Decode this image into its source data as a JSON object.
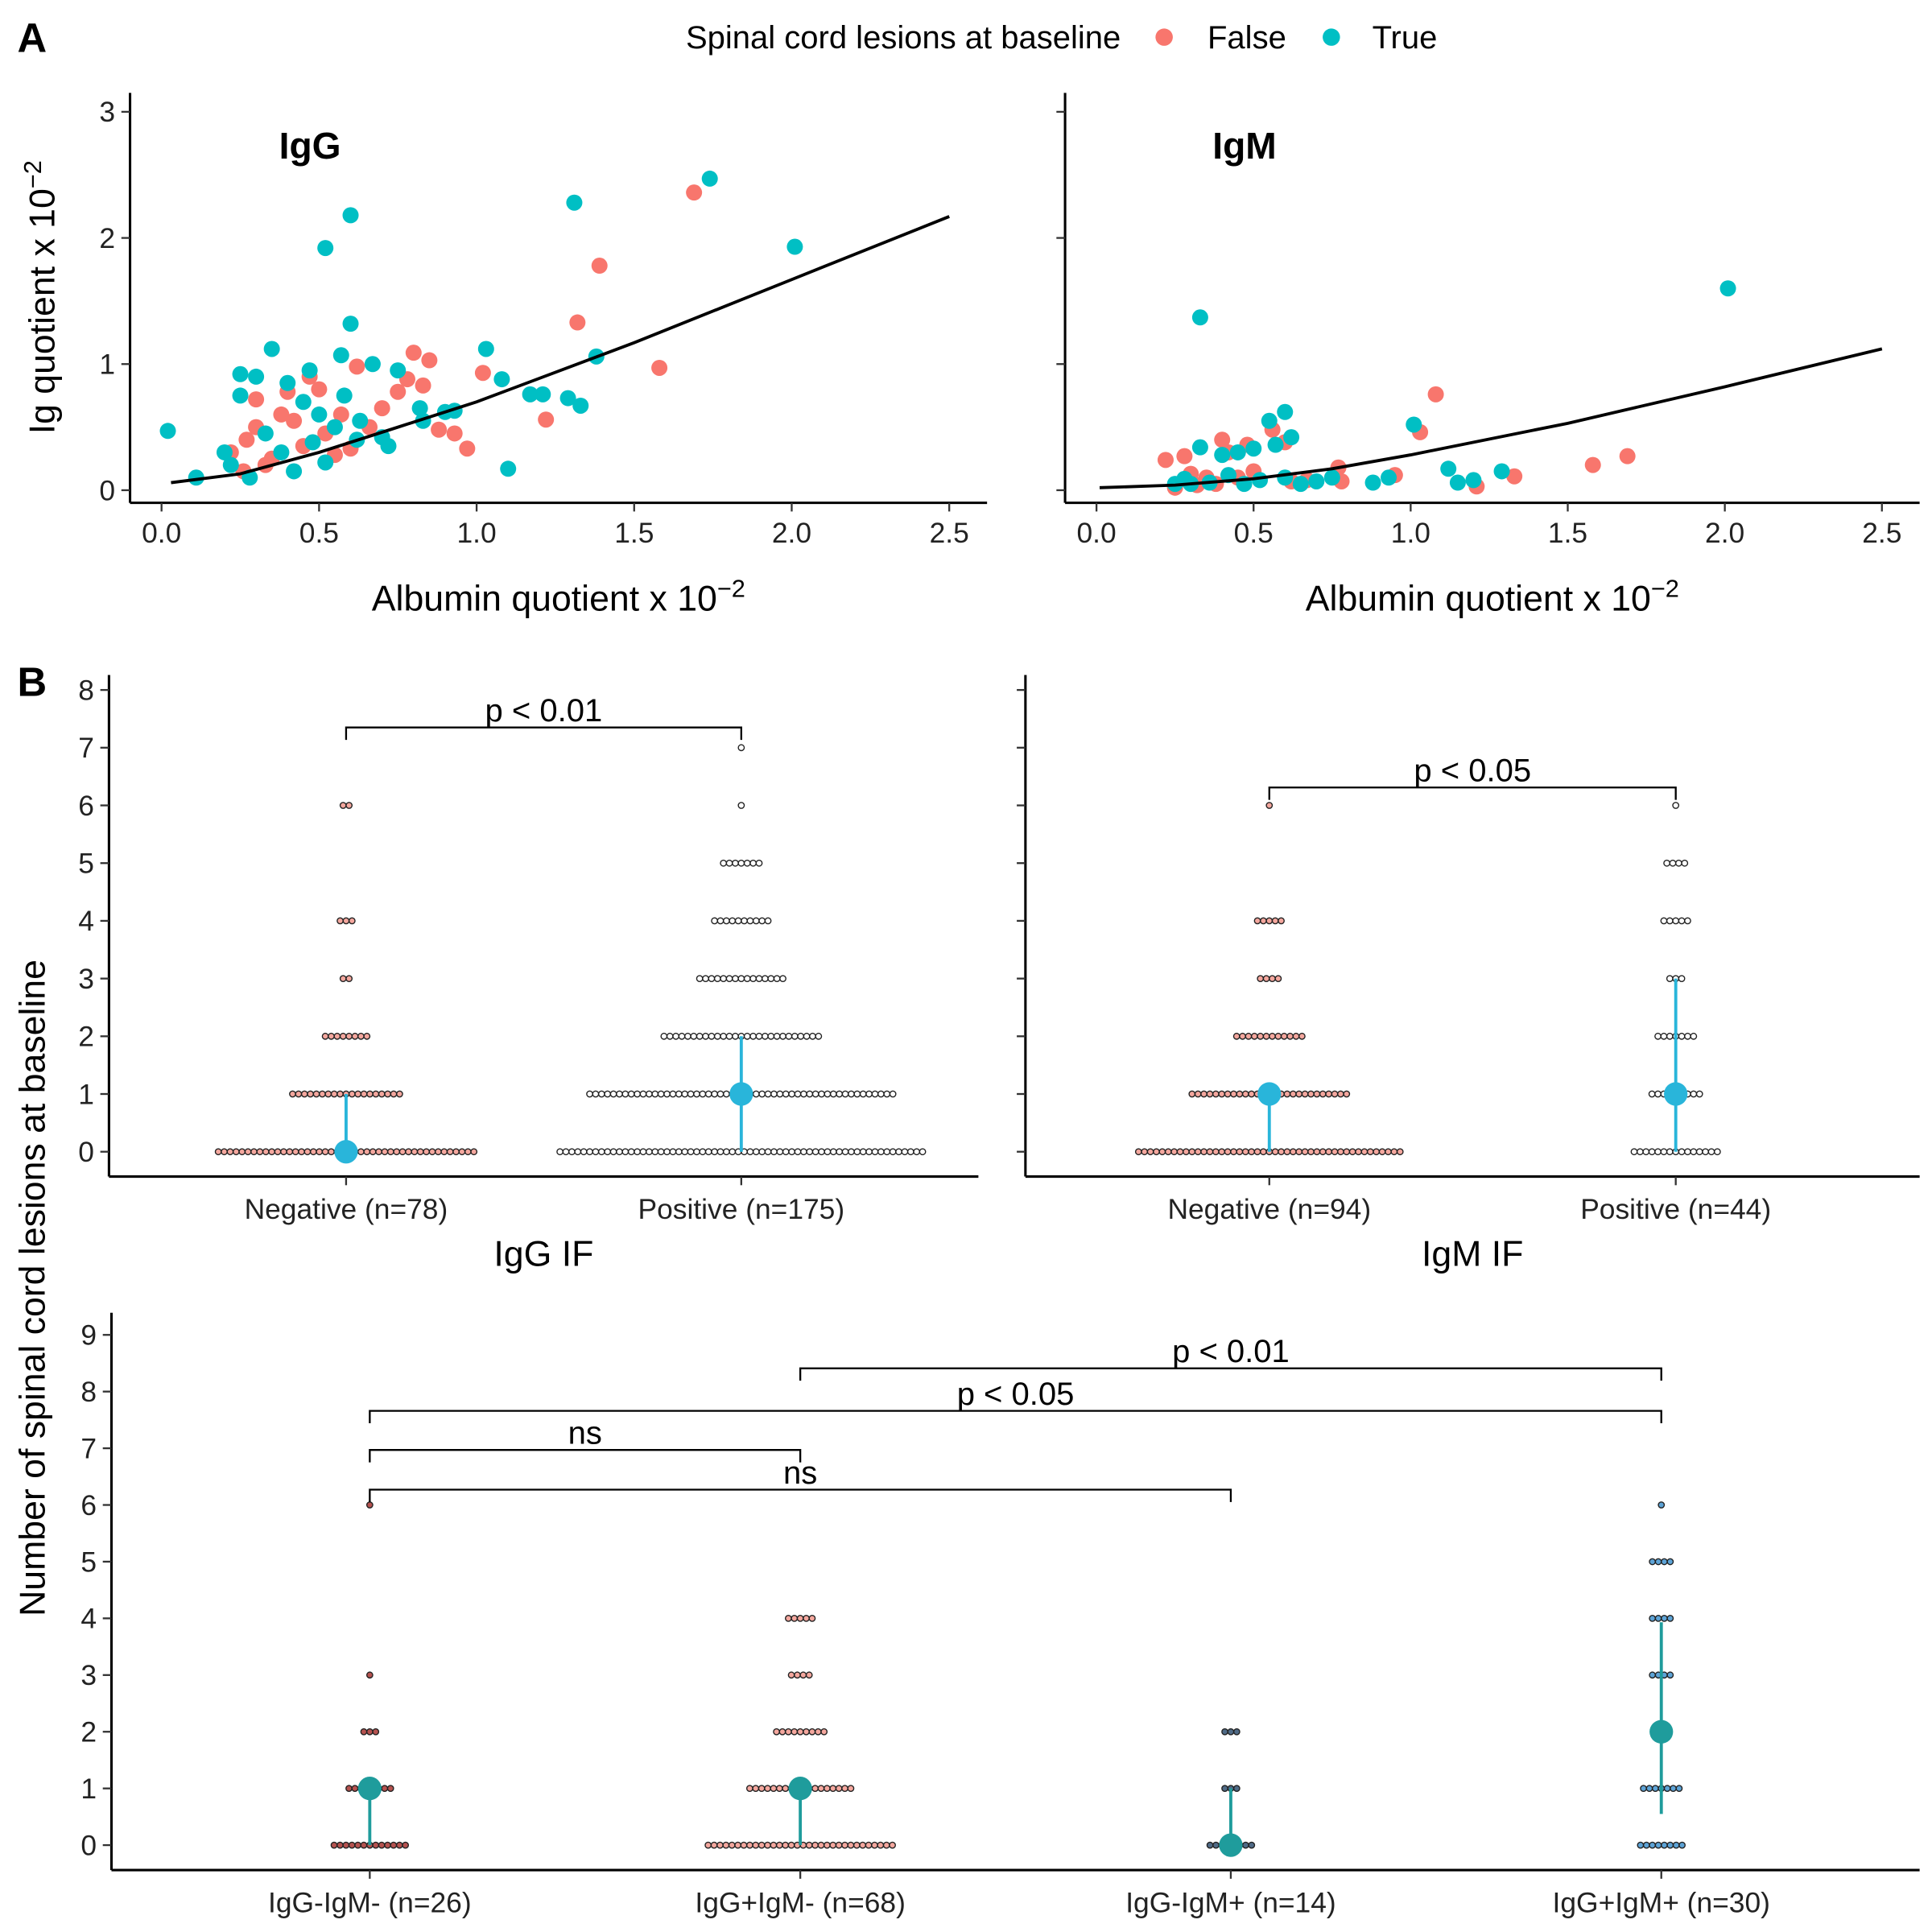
{
  "panel_labels": [
    "A",
    "B"
  ],
  "legend_title": "Spinal cord lesions at baseline",
  "a_ylabel": {
    "text": "Ig quotient x 10",
    "exponent": "−2"
  },
  "b_ylabel": "Number of spinal cord lesions at baseline",
  "chart_data": [
    {
      "type": "scatter",
      "title": "IgG",
      "xlabel": {
        "text": "Albumin quotient x 10",
        "exponent": "−2"
      },
      "xlim": [
        -0.1,
        2.62
      ],
      "ylim": [
        -0.1,
        3.15
      ],
      "xticks": [
        {
          "value": 0,
          "label": "0.0"
        },
        0.5,
        {
          "value": 1,
          "label": "1.0"
        },
        1.5,
        {
          "value": 2,
          "label": "2.0"
        },
        2.5
      ],
      "yticks": [
        0,
        1,
        2,
        3
      ],
      "ytick_labels": true,
      "series": [
        {
          "name": "False",
          "color": "#F8766D",
          "x": [
            1.69,
            1.39,
            1.32,
            1.58,
            1.22,
            1.02,
            0.97,
            0.85,
            0.8,
            0.78,
            0.83,
            0.62,
            0.47,
            0.4,
            0.3,
            0.3,
            0.22,
            0.26,
            0.35,
            0.45,
            0.52,
            0.55,
            0.6,
            0.66,
            0.7,
            0.88,
            0.93,
            0.5,
            0.38,
            0.27,
            0.33,
            0.42,
            0.57,
            0.75
          ],
          "y": [
            2.36,
            1.78,
            1.33,
            0.97,
            0.56,
            0.93,
            0.33,
            1.03,
            1.09,
            0.88,
            0.83,
            0.98,
            0.9,
            0.78,
            0.72,
            0.5,
            0.3,
            0.15,
            0.25,
            0.35,
            0.45,
            0.28,
            0.33,
            0.5,
            0.65,
            0.48,
            0.45,
            0.8,
            0.6,
            0.4,
            0.2,
            0.55,
            0.6,
            0.78
          ]
        },
        {
          "name": "True",
          "color": "#00BFC4",
          "x": [
            0.02,
            0.11,
            0.52,
            0.6,
            1.31,
            1.74,
            2.01,
            1.03,
            1.1,
            1.38,
            1.33,
            1.29,
            1.17,
            1.21,
            0.9,
            0.82,
            0.75,
            0.67,
            0.6,
            0.57,
            0.3,
            0.25,
            0.35,
            0.4,
            0.45,
            0.5,
            0.55,
            0.62,
            0.7,
            0.2,
            0.22,
            0.28,
            0.33,
            0.38,
            0.48,
            0.58,
            0.63,
            0.72,
            0.83,
            0.25,
            0.42,
            0.52,
            0.47,
            0.93,
            1.08
          ],
          "y": [
            0.47,
            0.1,
            1.92,
            2.18,
            2.28,
            2.47,
            1.93,
            1.12,
            0.17,
            1.06,
            0.67,
            0.73,
            0.76,
            0.76,
            0.62,
            0.65,
            0.95,
            1.0,
            1.32,
            1.07,
            0.9,
            0.92,
            1.12,
            0.85,
            0.7,
            0.6,
            0.5,
            0.4,
            0.42,
            0.3,
            0.2,
            0.1,
            0.45,
            0.3,
            0.38,
            0.75,
            0.55,
            0.35,
            0.55,
            0.75,
            0.15,
            0.22,
            0.95,
            0.63,
            0.88
          ]
        }
      ],
      "fit": {
        "color": "#000000",
        "x": [
          0.03,
          0.25,
          0.5,
          0.75,
          1.0,
          1.5,
          2.0,
          2.5
        ],
        "y": [
          0.06,
          0.13,
          0.3,
          0.5,
          0.7,
          1.17,
          1.67,
          2.17
        ]
      }
    },
    {
      "type": "scatter",
      "title": "IgM",
      "xlabel": {
        "text": "Albumin quotient x 10",
        "exponent": "−2"
      },
      "xlim": [
        -0.1,
        2.62
      ],
      "ylim": [
        -0.1,
        3.15
      ],
      "xticks": [
        {
          "value": 0,
          "label": "0.0"
        },
        0.5,
        {
          "value": 1,
          "label": "1.0"
        },
        1.5,
        {
          "value": 2,
          "label": "2.0"
        },
        2.5
      ],
      "yticks": [
        0,
        1,
        2,
        3
      ],
      "ytick_labels": false,
      "series": [
        {
          "name": "False",
          "color": "#F8766D",
          "x": [
            1.08,
            1.03,
            1.69,
            1.58,
            1.33,
            1.21,
            0.95,
            0.78,
            0.77,
            0.6,
            0.56,
            0.4,
            0.22,
            0.28,
            0.35,
            0.45,
            0.5,
            0.32,
            0.25,
            0.42,
            0.48,
            0.62,
            0.67,
            0.3,
            0.38
          ],
          "y": [
            0.76,
            0.46,
            0.27,
            0.2,
            0.11,
            0.03,
            0.12,
            0.07,
            0.18,
            0.38,
            0.48,
            0.4,
            0.24,
            0.27,
            0.1,
            0.1,
            0.15,
            0.04,
            0.02,
            0.3,
            0.36,
            0.07,
            0.08,
            0.13,
            0.05
          ]
        },
        {
          "name": "True",
          "color": "#00BFC4",
          "x": [
            0.33,
            2.01,
            1.01,
            0.6,
            0.55,
            0.5,
            0.45,
            0.4,
            0.33,
            0.3,
            0.25,
            0.62,
            0.57,
            0.42,
            1.12,
            1.15,
            1.2,
            1.29,
            0.93,
            0.88,
            0.75,
            0.6,
            0.52,
            0.36,
            0.47,
            0.65,
            0.7,
            0.28
          ],
          "y": [
            1.37,
            1.6,
            0.52,
            0.62,
            0.55,
            0.33,
            0.3,
            0.28,
            0.34,
            0.05,
            0.05,
            0.42,
            0.36,
            0.12,
            0.17,
            0.06,
            0.08,
            0.15,
            0.1,
            0.06,
            0.1,
            0.1,
            0.08,
            0.06,
            0.05,
            0.05,
            0.07,
            0.09
          ]
        }
      ],
      "fit": {
        "color": "#000000",
        "x": [
          0.01,
          0.25,
          0.5,
          0.75,
          1.0,
          1.5,
          2.0,
          2.5
        ],
        "y": [
          0.02,
          0.04,
          0.09,
          0.17,
          0.28,
          0.53,
          0.82,
          1.12
        ]
      }
    },
    {
      "type": "dotplot",
      "xlabel": "IgG IF",
      "categories": [
        "Negative (n=78)",
        "Positive (n=175)"
      ],
      "levels": [
        0,
        1,
        2,
        3,
        4,
        5,
        6,
        7
      ],
      "counts": [
        [
          44,
          19,
          8,
          2,
          3,
          0,
          2,
          0
        ],
        [
          62,
          52,
          27,
          15,
          10,
          7,
          1,
          1
        ]
      ],
      "dot_colors": [
        "#F4A79E",
        "#FFFFFF"
      ],
      "medians": [
        0,
        1
      ],
      "q1": [
        0,
        0
      ],
      "q3": [
        1,
        2
      ],
      "summary_color": "#29B5DA",
      "ylim": [
        -0.43,
        8.26
      ],
      "yticks": [
        0,
        1,
        2,
        3,
        4,
        5,
        6,
        7,
        8
      ],
      "ytick_labels": true,
      "comparisons": [
        {
          "from": 0,
          "to": 1,
          "y": 7.35,
          "label": "p < 0.01"
        }
      ]
    },
    {
      "type": "dotplot",
      "xlabel": "IgM IF",
      "categories": [
        "Negative (n=94)",
        "Positive (n=44)"
      ],
      "levels": [
        0,
        1,
        2,
        3,
        4,
        5,
        6
      ],
      "counts": [
        [
          45,
          27,
          12,
          4,
          5,
          0,
          1
        ],
        [
          15,
          9,
          7,
          3,
          5,
          4,
          1
        ]
      ],
      "dot_colors": [
        "#F4A79E",
        "#FFFFFF"
      ],
      "medians": [
        1,
        1
      ],
      "q1": [
        0,
        0
      ],
      "q3": [
        1,
        3
      ],
      "summary_color": "#29B5DA",
      "ylim": [
        -0.43,
        8.26
      ],
      "yticks": [
        0,
        1,
        2,
        3,
        4,
        5,
        6,
        7,
        8
      ],
      "ytick_labels": false,
      "comparisons": [
        {
          "from": 0,
          "to": 1,
          "y": 6.31,
          "label": "p < 0.05"
        }
      ]
    },
    {
      "type": "dotplot",
      "categories": [
        "IgG-IgM- (n=26)",
        "IgG+IgM- (n=68)",
        "IgG-IgM+ (n=14)",
        "IgG+IgM+ (n=30)"
      ],
      "levels": [
        0,
        1,
        2,
        3,
        4,
        5,
        6
      ],
      "counts": [
        [
          13,
          8,
          3,
          1,
          0,
          0,
          1
        ],
        [
          32,
          18,
          9,
          4,
          5,
          0,
          0
        ],
        [
          8,
          3,
          3,
          0,
          0,
          0,
          0
        ],
        [
          8,
          7,
          2,
          4,
          4,
          4,
          1
        ]
      ],
      "dot_colors": [
        "#B5524F",
        "#F4A79E",
        "#4F6A86",
        "#5DA3D6"
      ],
      "medians": [
        1,
        1,
        0,
        2
      ],
      "q1": [
        0,
        0,
        0,
        0.55
      ],
      "q3": [
        1,
        1,
        1,
        3.93
      ],
      "summary_color": "#1F9C9C",
      "ylim": [
        -0.44,
        9.39
      ],
      "yticks": [
        0,
        1,
        2,
        3,
        4,
        5,
        6,
        7,
        8,
        9
      ],
      "ytick_labels": true,
      "comparisons": [
        {
          "from": 1,
          "to": 3,
          "y": 8.41,
          "label": "p < 0.01"
        },
        {
          "from": 0,
          "to": 3,
          "y": 7.66,
          "label": "p < 0.05"
        },
        {
          "from": 0,
          "to": 1,
          "y": 6.97,
          "label": "ns"
        },
        {
          "from": 0,
          "to": 2,
          "y": 6.27,
          "label": "ns"
        }
      ]
    }
  ]
}
